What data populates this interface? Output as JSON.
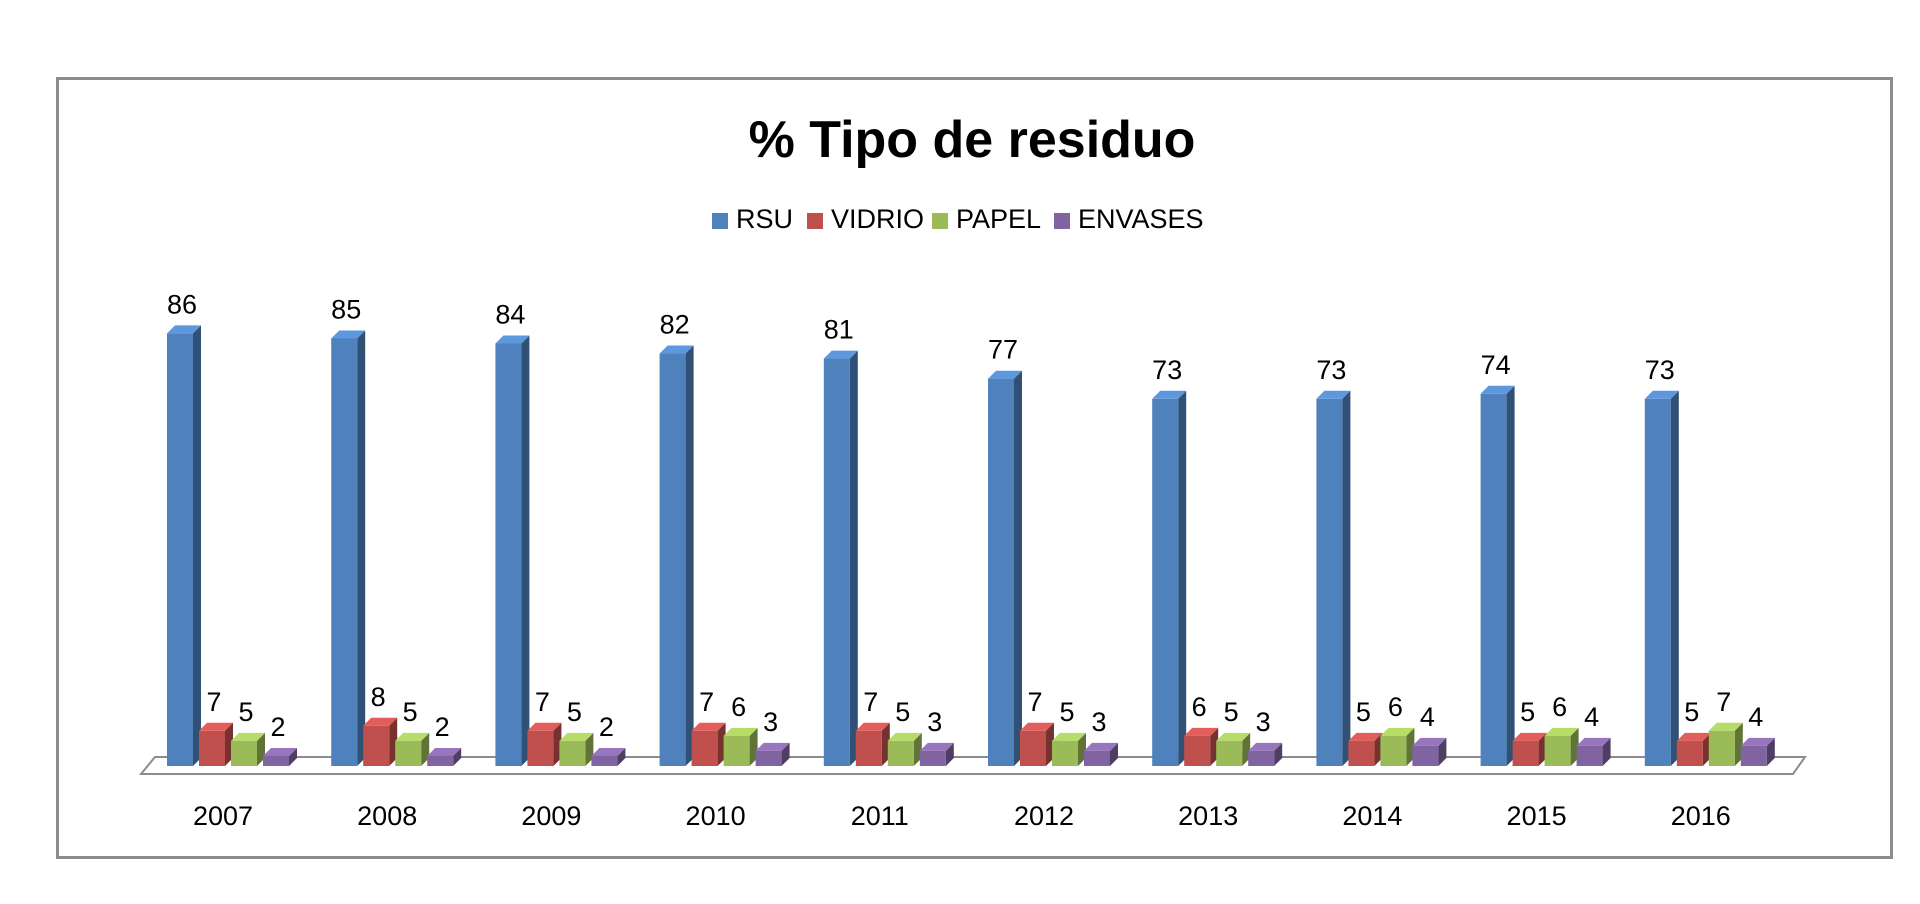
{
  "chart_data": {
    "type": "bar",
    "title": "% Tipo de residuo",
    "legend_position": "top",
    "categories": [
      "2007",
      "2008",
      "2009",
      "2010",
      "2011",
      "2012",
      "2013",
      "2014",
      "2015",
      "2016"
    ],
    "series": [
      {
        "name": "RSU",
        "color": "#4f81bd",
        "values": [
          86,
          85,
          84,
          82,
          81,
          77,
          73,
          73,
          74,
          73
        ]
      },
      {
        "name": "VIDRIO",
        "color": "#c0504d",
        "values": [
          7,
          8,
          7,
          7,
          7,
          7,
          6,
          5,
          5,
          5
        ]
      },
      {
        "name": "PAPEL",
        "color": "#9bbb59",
        "values": [
          5,
          5,
          5,
          6,
          5,
          5,
          5,
          6,
          6,
          7
        ]
      },
      {
        "name": "ENVASES",
        "color": "#8064a2",
        "values": [
          2,
          2,
          2,
          3,
          3,
          3,
          3,
          4,
          4,
          4
        ]
      }
    ],
    "ylim": [
      0,
      100
    ],
    "grid": false,
    "style": "3d-clustered-column"
  }
}
